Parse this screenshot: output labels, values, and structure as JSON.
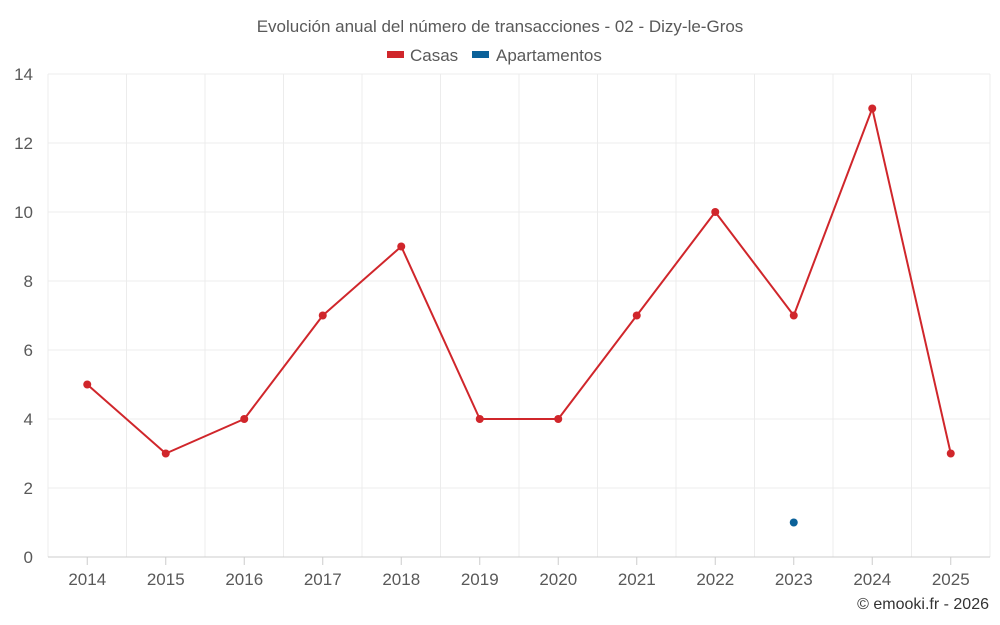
{
  "chart_data": {
    "type": "line",
    "title": "Evolución anual del número de transacciones - 02 - Dizy-le-Gros",
    "categories": [
      "2014",
      "2015",
      "2016",
      "2017",
      "2018",
      "2019",
      "2020",
      "2021",
      "2022",
      "2023",
      "2024",
      "2025"
    ],
    "y_ticks": [
      "0",
      "2",
      "4",
      "6",
      "8",
      "10",
      "12",
      "14"
    ],
    "ylim": [
      0,
      14
    ],
    "grid": true,
    "legend_position": "top-center",
    "series": [
      {
        "name": "Casas",
        "color": "#d0262b",
        "values": [
          5,
          3,
          4,
          7,
          9,
          4,
          4,
          7,
          10,
          7,
          13,
          3
        ]
      },
      {
        "name": "Apartamentos",
        "color": "#0b6199",
        "values": [
          null,
          null,
          null,
          null,
          null,
          null,
          null,
          null,
          null,
          1,
          null,
          null
        ]
      }
    ],
    "xlabel": "",
    "ylabel": ""
  },
  "credit": "© emooki.fr - 2026"
}
